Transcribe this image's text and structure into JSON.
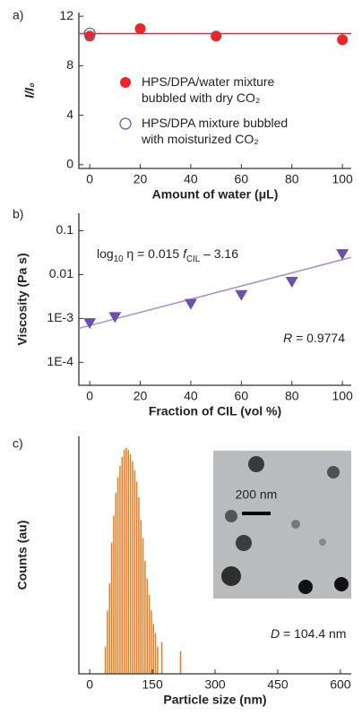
{
  "chart_data": [
    {
      "type": "scatter",
      "panel_label": "a)",
      "x_label": "Amount of water (μL)",
      "y_label": "I/I₀",
      "xlim": [
        -4.3,
        103.5
      ],
      "xticks": [
        0,
        20,
        40,
        60,
        80,
        100
      ],
      "ylim": [
        -0.3,
        12.3
      ],
      "yticks": [
        0,
        4,
        8,
        12
      ],
      "series": [
        {
          "name": "HPS/DPA/water mixture bubbled with dry CO₂",
          "color": "#e8272a",
          "marker": "filled-circle",
          "x": [
            0,
            20,
            50,
            100
          ],
          "values": [
            10.4,
            11.0,
            10.4,
            10.1
          ]
        },
        {
          "name": "HPS/DPA mixture bubbled with moisturized CO₂",
          "color": "#5b62b0",
          "marker": "open-circle",
          "x": [
            0
          ],
          "values": [
            10.6
          ]
        }
      ],
      "fit": {
        "color": "#e8272a",
        "x": [
          -4.3,
          103.5
        ],
        "values": [
          10.6,
          10.6
        ]
      }
    },
    {
      "type": "scatter",
      "panel_label": "b)",
      "x_label": "Fraction of CIL (vol %)",
      "y_label": "Viscosity (Pa s)",
      "xlim": [
        -4.3,
        103.5
      ],
      "xticks": [
        0,
        20,
        40,
        60,
        80,
        100
      ],
      "log_y": true,
      "ylim": [
        3e-05,
        0.25
      ],
      "yticks": [
        {
          "value": 0.0001,
          "label": "1E-4"
        },
        {
          "value": 0.001,
          "label": "1E-3"
        },
        0.01,
        0.1
      ],
      "series": [
        {
          "color": "#6b4fa8",
          "marker": "down-triangle",
          "x": [
            0,
            10,
            40,
            60,
            80,
            100
          ],
          "values": [
            0.0008,
            0.0011,
            0.0022,
            0.0035,
            0.007,
            0.03
          ]
        }
      ],
      "fit": {
        "color": "#a58fd0",
        "x": [
          -4.3,
          103.5
        ],
        "values": [
          0.000596,
          0.0247
        ]
      },
      "equation": [
        {
          "text": "log"
        },
        {
          "text": "10",
          "sub": true
        },
        {
          "text": " η = 0.015 "
        },
        {
          "text": "f",
          "italic": true
        },
        {
          "text": "CIL",
          "sub": true
        },
        {
          "text": " – 3.16"
        }
      ],
      "r_text": [
        {
          "text": "R",
          "italic": true
        },
        {
          "text": " = 0.9774"
        }
      ]
    },
    {
      "type": "histogram",
      "panel_label": "c)",
      "x_label": "Particle size (nm)",
      "y_label": "Counts (au)",
      "xlim": [
        -26,
        626
      ],
      "xticks": [
        0,
        150,
        300,
        450,
        600
      ],
      "ylim": [
        0,
        105
      ],
      "color": "#f07a1e",
      "bins": [
        35,
        40,
        45,
        50,
        55,
        60,
        65,
        70,
        75,
        80,
        85,
        90,
        95,
        100,
        105,
        110,
        115,
        120,
        125,
        130,
        135,
        140,
        145,
        150,
        155,
        160,
        165,
        170,
        175,
        180,
        185,
        190,
        195,
        200,
        205,
        210,
        215,
        220,
        225
      ],
      "counts": [
        12,
        28,
        40,
        58,
        70,
        80,
        87,
        92,
        96,
        99,
        100,
        99,
        97,
        94,
        90,
        85,
        78,
        68,
        60,
        50,
        42,
        35,
        28,
        22,
        18,
        12,
        0,
        14,
        0,
        0,
        0,
        0,
        0,
        0,
        0,
        0,
        10,
        0
      ],
      "inset_label": "200 nm",
      "d_text": [
        {
          "text": "D",
          "italic": true
        },
        {
          "text": " = 104.4 nm"
        }
      ]
    }
  ]
}
